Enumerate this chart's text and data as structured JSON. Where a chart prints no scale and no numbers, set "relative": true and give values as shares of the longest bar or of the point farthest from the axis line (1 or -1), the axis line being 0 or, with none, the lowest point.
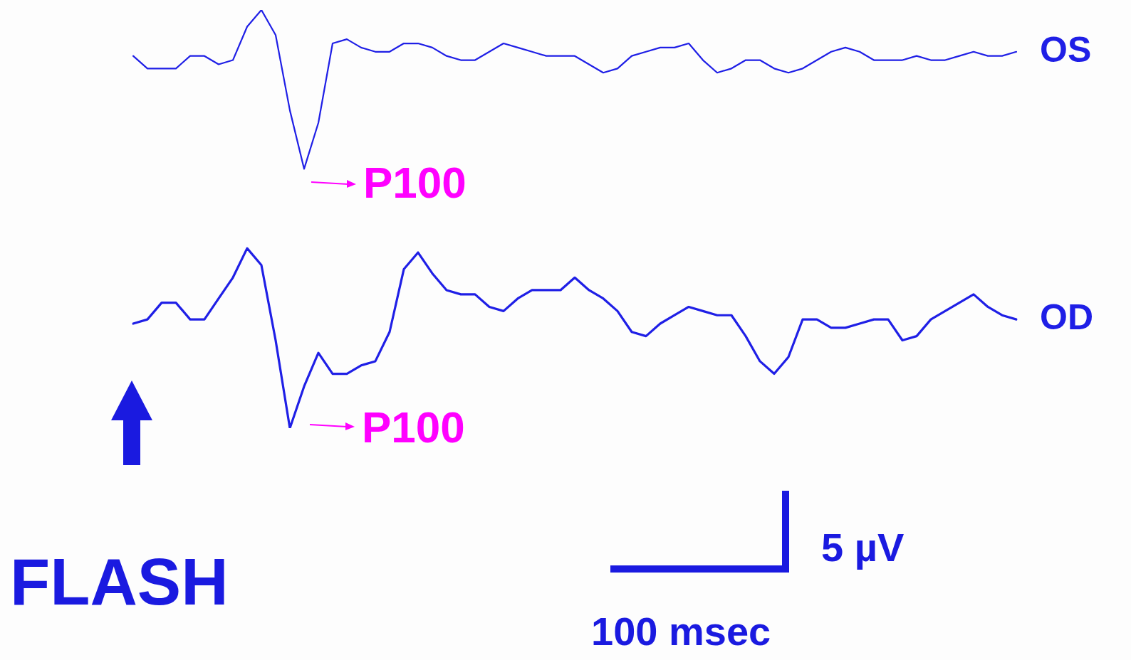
{
  "chart_data": {
    "type": "line",
    "relative": true,
    "legend": false,
    "marker": "none",
    "categories": [
      null,
      null,
      null,
      null,
      null,
      null,
      null,
      null,
      null,
      null,
      null,
      null,
      null,
      null,
      null,
      null,
      null,
      null,
      null,
      null,
      null,
      null,
      null,
      null,
      null,
      null,
      null,
      null,
      null,
      null,
      null,
      null,
      null,
      null,
      null,
      null,
      null,
      null,
      null,
      null,
      null,
      null,
      null,
      null,
      null,
      null,
      null,
      null,
      null,
      null,
      null,
      null,
      null,
      null,
      null,
      null,
      null,
      null,
      null,
      null,
      null,
      null,
      null
    ],
    "series": [
      {
        "name": "OS",
        "color": "#1f1fe6",
        "values": [
          0.89,
          0.86,
          0.86,
          0.86,
          0.89,
          0.89,
          0.87,
          0.88,
          0.96,
          1,
          0.94,
          0.76,
          0.62,
          0.73,
          0.92,
          0.93,
          0.91,
          0.9,
          0.9,
          0.92,
          0.92,
          0.91,
          0.89,
          0.88,
          0.88,
          0.9,
          0.92,
          0.91,
          0.9,
          0.89,
          0.89,
          0.89,
          0.87,
          0.85,
          0.86,
          0.89,
          0.9,
          0.91,
          0.91,
          0.92,
          0.88,
          0.85,
          0.86,
          0.88,
          0.88,
          0.86,
          0.85,
          0.86,
          0.88,
          0.9,
          0.91,
          0.9,
          0.88,
          0.88,
          0.88,
          0.89,
          0.88,
          0.88,
          0.89,
          0.9,
          0.89,
          0.89,
          0.9
        ]
      },
      {
        "name": "OD",
        "color": "#1f1fe6",
        "values": [
          0.25,
          0.26,
          0.3,
          0.3,
          0.26,
          0.26,
          0.31,
          0.36,
          0.43,
          0.39,
          0.21,
          0,
          0.1,
          0.18,
          0.13,
          0.13,
          0.15,
          0.16,
          0.23,
          0.38,
          0.42,
          0.37,
          0.33,
          0.32,
          0.32,
          0.29,
          0.28,
          0.31,
          0.33,
          0.33,
          0.33,
          0.36,
          0.33,
          0.31,
          0.28,
          0.23,
          0.22,
          0.25,
          0.27,
          0.29,
          0.28,
          0.27,
          0.27,
          0.22,
          0.16,
          0.13,
          0.17,
          0.26,
          0.26,
          0.24,
          0.24,
          0.25,
          0.26,
          0.26,
          0.21,
          0.22,
          0.26,
          0.28,
          0.3,
          0.32,
          0.29,
          0.27,
          0.26
        ]
      }
    ],
    "annotations": [
      "P100",
      "P100",
      "FLASH",
      "5 µV",
      "100 msec"
    ]
  }
}
